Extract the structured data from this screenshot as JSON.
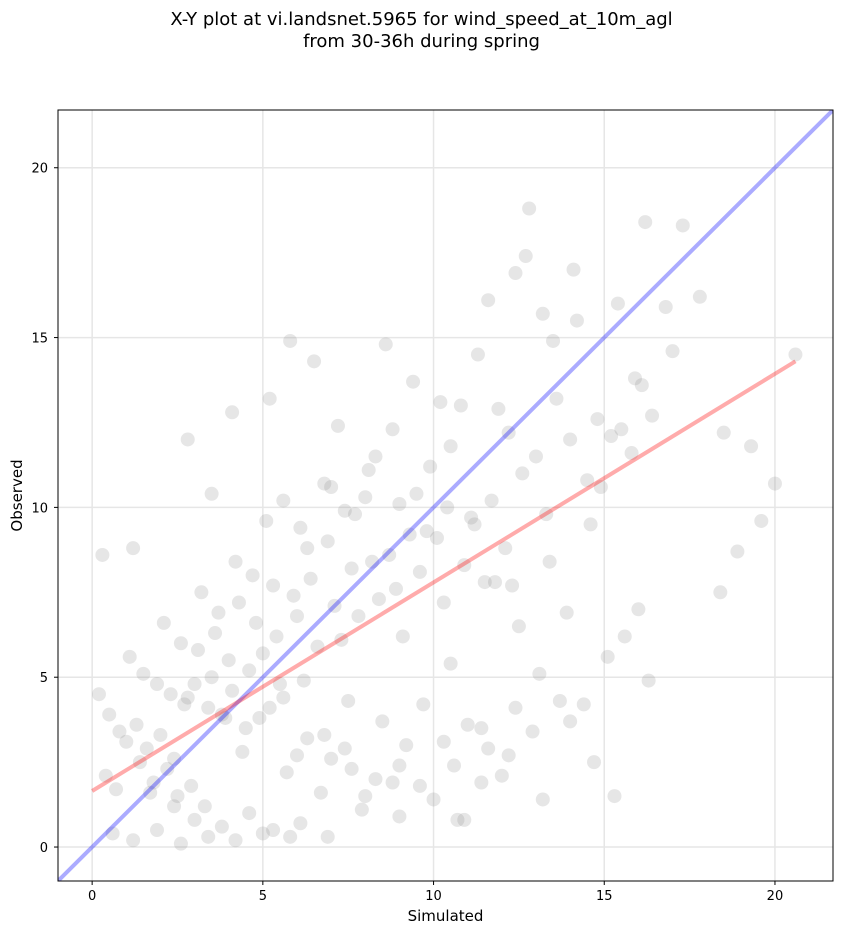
{
  "chart_data": {
    "type": "scatter",
    "title_line1": "X-Y plot at vi.landsnet.5965 for wind_speed_at_10m_agl",
    "title_line2": "from 30-36h during spring",
    "xlabel": "Simulated",
    "ylabel": "Observed",
    "xlim": [
      -1,
      21.7
    ],
    "ylim": [
      -1,
      21.7
    ],
    "xticks": [
      0,
      5,
      10,
      15,
      20
    ],
    "yticks": [
      0,
      5,
      10,
      15,
      20
    ],
    "grid": true,
    "point_color": "#808080",
    "one_to_one_line": {
      "color": "#0000ff",
      "x": [
        -1,
        21.7
      ],
      "y": [
        -1,
        21.7
      ]
    },
    "regression_line": {
      "color": "#ff0000",
      "x": [
        0,
        20.6
      ],
      "y": [
        1.65,
        14.3
      ]
    },
    "points": {
      "x": [
        0.3,
        1.2,
        2.8,
        3.5,
        4.1,
        5.2,
        5.8,
        6.5,
        7.2,
        8.6,
        9.4,
        10.2,
        11.6,
        12.8,
        13.2,
        14.1,
        15.4,
        16.2,
        17.3,
        18.5,
        19.3,
        20.0,
        20.6,
        12.7,
        13.5,
        14.2,
        15.9,
        16.8,
        14.8,
        11.3,
        12.4,
        13.6,
        15.2,
        16.1,
        17.8,
        18.9,
        19.6,
        9.9,
        10.8,
        11.9,
        12.2,
        13.0,
        14.5,
        15.5,
        16.4,
        17.0,
        18.4,
        8.1,
        8.8,
        9.5,
        10.5,
        11.1,
        11.7,
        12.6,
        13.3,
        14.0,
        14.9,
        15.8,
        7.0,
        7.7,
        8.3,
        9.0,
        9.8,
        10.4,
        11.2,
        12.1,
        13.4,
        14.6,
        16.0,
        6.1,
        6.8,
        7.4,
        8.0,
        8.7,
        9.3,
        10.1,
        10.9,
        11.5,
        12.3,
        5.1,
        5.6,
        6.3,
        6.9,
        7.6,
        8.2,
        8.9,
        9.6,
        10.3,
        4.2,
        4.7,
        5.3,
        5.9,
        6.4,
        7.1,
        7.8,
        8.4,
        9.1,
        3.2,
        3.7,
        4.3,
        4.8,
        5.4,
        6.0,
        6.6,
        7.3,
        2.1,
        2.6,
        3.1,
        3.6,
        4.0,
        4.6,
        5.0,
        5.5,
        1.1,
        1.5,
        1.9,
        2.3,
        2.7,
        3.0,
        3.4,
        3.9,
        0.2,
        0.5,
        0.8,
        1.0,
        1.3,
        1.6,
        2.0,
        2.4,
        0.4,
        0.7,
        1.4,
        1.8,
        2.2,
        2.5,
        2.9,
        3.3,
        6.2,
        7.5,
        8.5,
        9.2,
        9.7,
        10.6,
        11.4,
        12.0,
        4.4,
        5.7,
        6.7,
        7.9,
        8.3,
        9.0,
        10.0,
        10.7,
        3.8,
        4.5,
        5.2,
        6.0,
        6.8,
        7.4,
        8.0,
        8.8,
        2.8,
        3.5,
        4.1,
        4.9,
        5.6,
        6.3,
        7.0,
        7.6,
        1.7,
        2.4,
        3.0,
        3.8,
        4.6,
        5.3,
        6.1,
        6.9,
        0.6,
        1.2,
        1.9,
        2.6,
        3.4,
        4.2,
        5.0,
        5.8,
        11.8,
        12.5,
        13.1,
        13.9,
        14.4,
        15.1,
        15.6,
        16.3,
        10.5,
        11.0,
        11.6,
        12.4,
        13.2,
        14.0,
        14.7,
        15.3,
        9.0,
        9.6,
        10.3,
        10.9,
        11.4,
        12.2,
        12.9,
        13.7
      ],
      "y": [
        8.6,
        8.8,
        12.0,
        10.4,
        12.8,
        13.2,
        14.9,
        14.3,
        12.4,
        14.8,
        13.7,
        13.1,
        16.1,
        18.8,
        15.7,
        17.0,
        16.0,
        18.4,
        18.3,
        12.2,
        11.8,
        10.7,
        14.5,
        17.4,
        14.9,
        15.5,
        13.8,
        15.9,
        12.6,
        14.5,
        16.9,
        13.2,
        12.1,
        13.6,
        16.2,
        8.7,
        9.6,
        11.2,
        13.0,
        12.9,
        12.2,
        11.5,
        10.8,
        12.3,
        12.7,
        14.6,
        7.5,
        11.1,
        12.3,
        10.4,
        11.8,
        9.7,
        10.2,
        11.0,
        9.8,
        12.0,
        10.6,
        11.6,
        10.6,
        9.8,
        11.5,
        10.1,
        9.3,
        10.0,
        9.5,
        8.8,
        8.4,
        9.5,
        7.0,
        9.4,
        10.7,
        9.9,
        10.3,
        8.6,
        9.2,
        9.1,
        8.3,
        7.8,
        7.7,
        9.6,
        10.2,
        8.8,
        9.0,
        8.2,
        8.4,
        7.6,
        8.1,
        7.2,
        8.4,
        8.0,
        7.7,
        7.4,
        7.9,
        7.1,
        6.8,
        7.3,
        6.2,
        7.5,
        6.9,
        7.2,
        6.6,
        6.2,
        6.8,
        5.9,
        6.1,
        6.6,
        6.0,
        5.8,
        6.3,
        5.5,
        5.2,
        5.7,
        4.8,
        5.6,
        5.1,
        4.8,
        4.5,
        4.2,
        4.8,
        4.1,
        3.8,
        4.5,
        3.9,
        3.4,
        3.1,
        3.6,
        2.9,
        3.3,
        2.6,
        2.1,
        1.7,
        2.5,
        1.9,
        2.3,
        1.5,
        1.8,
        1.2,
        4.9,
        4.3,
        3.7,
        3.0,
        4.2,
        2.4,
        3.5,
        2.1,
        2.8,
        2.2,
        1.6,
        1.1,
        2.0,
        0.9,
        1.4,
        0.8,
        3.9,
        3.5,
        4.1,
        2.7,
        3.3,
        2.9,
        1.5,
        1.9,
        4.4,
        5.0,
        4.6,
        3.8,
        4.4,
        3.2,
        2.6,
        2.3,
        1.6,
        1.2,
        0.8,
        0.6,
        1.0,
        0.5,
        0.7,
        0.3,
        0.4,
        0.2,
        0.5,
        0.1,
        0.3,
        0.2,
        0.4,
        0.3,
        7.8,
        6.5,
        5.1,
        6.9,
        4.2,
        5.6,
        6.2,
        4.9,
        5.4,
        3.6,
        2.9,
        4.1,
        1.4,
        3.7,
        2.5,
        1.5,
        2.4,
        1.8,
        3.1,
        0.8,
        1.9,
        2.7,
        3.4,
        4.3
      ]
    }
  }
}
